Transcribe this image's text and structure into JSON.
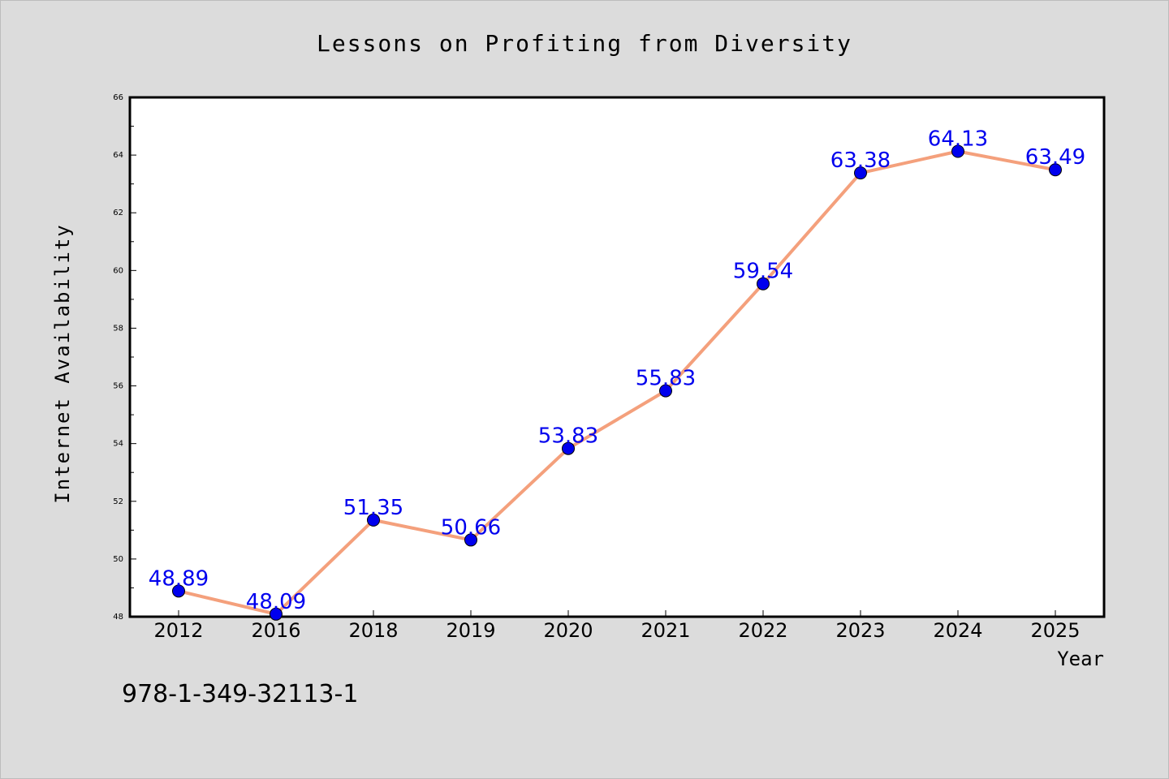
{
  "chart_data": {
    "type": "line",
    "title": "Lessons on Profiting from Diversity",
    "xlabel": "Year",
    "ylabel": "Internet Availability",
    "categories": [
      "2012",
      "2016",
      "2018",
      "2019",
      "2020",
      "2021",
      "2022",
      "2023",
      "2024",
      "2025"
    ],
    "series": [
      {
        "values": [
          48.89,
          48.09,
          51.35,
          50.66,
          53.83,
          55.83,
          59.54,
          63.38,
          64.13,
          63.49
        ],
        "labels": [
          "48.89",
          "48.09",
          "51.35",
          "50.66",
          "53.83",
          "55.83",
          "59.54",
          "63.38",
          "64.13",
          "63.49"
        ],
        "line_color": "#f4a07c",
        "marker_color": "#0000ee",
        "label_color": "#0000ee"
      }
    ],
    "yticks": [
      "48",
      "50",
      "52",
      "54",
      "56",
      "58",
      "60",
      "62",
      "64",
      "66"
    ],
    "ylim": [
      48,
      66
    ],
    "grid": false,
    "legend": "none"
  },
  "footer": {
    "isbn": "978-1-349-32113-1"
  },
  "colors": {
    "background": "#dcdcdc",
    "plot_background": "#ffffff"
  }
}
